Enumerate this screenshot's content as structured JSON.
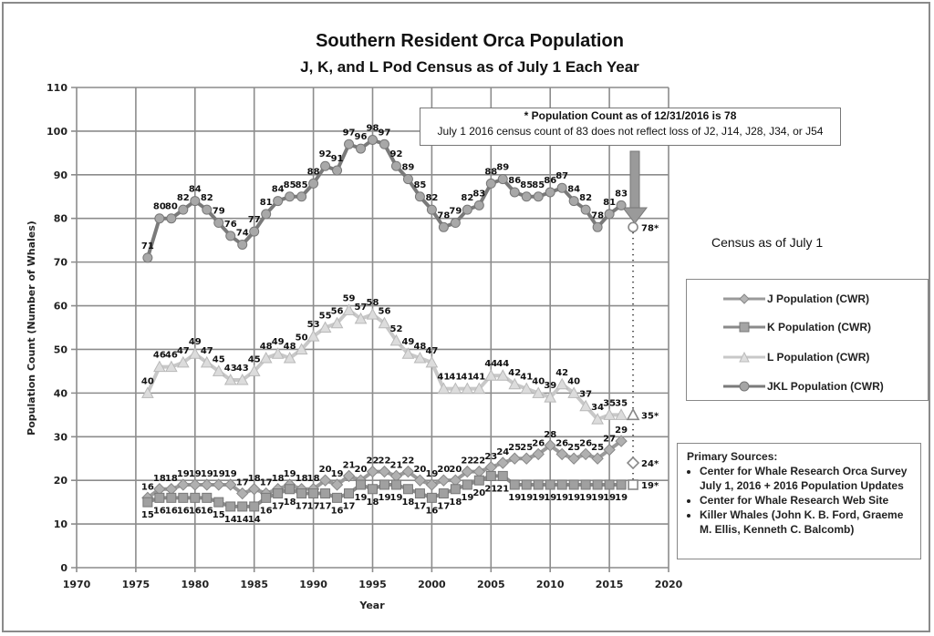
{
  "chart_data": {
    "type": "line",
    "title": "Southern Resident Orca Population",
    "subtitle": "J, K, and L Pod Census as of July 1 Each Year",
    "xlabel": "Year",
    "ylabel": "Population Count (Number of Whales)",
    "xlim": [
      1970,
      2020
    ],
    "ylim": [
      0,
      110
    ],
    "x_ticks": [
      1970,
      1975,
      1980,
      1985,
      1990,
      1995,
      2000,
      2005,
      2010,
      2015,
      2020
    ],
    "y_ticks": [
      0,
      10,
      20,
      30,
      40,
      50,
      60,
      70,
      80,
      90,
      100,
      110
    ],
    "grid": true,
    "legend_position": "right",
    "legend_title": "Census as of July 1",
    "x": [
      1976,
      1977,
      1978,
      1979,
      1980,
      1981,
      1982,
      1983,
      1984,
      1985,
      1986,
      1987,
      1988,
      1989,
      1990,
      1991,
      1992,
      1993,
      1994,
      1995,
      1996,
      1997,
      1998,
      1999,
      2000,
      2001,
      2002,
      2003,
      2004,
      2005,
      2006,
      2007,
      2008,
      2009,
      2010,
      2011,
      2012,
      2013,
      2014,
      2015,
      2016
    ],
    "series": [
      {
        "name": "J Population (CWR)",
        "marker": "diamond",
        "color": "#9a9a9a",
        "values": [
          16,
          18,
          18,
          19,
          19,
          19,
          19,
          19,
          17,
          18,
          17,
          18,
          19,
          18,
          18,
          20,
          19,
          21,
          20,
          22,
          22,
          21,
          22,
          20,
          19,
          20,
          20,
          22,
          22,
          23,
          24,
          25,
          25,
          26,
          28,
          26,
          25,
          26,
          25,
          27,
          29
        ],
        "year_end_2016": {
          "x": 2017,
          "value": 24,
          "label": "24*"
        }
      },
      {
        "name": "K Population (CWR)",
        "marker": "square",
        "color": "#8a8a8a",
        "values": [
          15,
          16,
          16,
          16,
          16,
          16,
          15,
          14,
          14,
          14,
          16,
          17,
          18,
          17,
          17,
          17,
          16,
          17,
          19,
          18,
          19,
          19,
          18,
          17,
          16,
          17,
          18,
          19,
          20,
          21,
          21,
          19,
          19,
          19,
          19,
          19,
          19,
          19,
          19,
          19,
          19
        ],
        "year_end_2016": {
          "x": 2017,
          "value": 19,
          "label": "19*"
        }
      },
      {
        "name": "L Population (CWR)",
        "marker": "triangle",
        "color": "#c8c8c8",
        "values": [
          40,
          46,
          46,
          47,
          49,
          47,
          45,
          43,
          43,
          45,
          48,
          49,
          48,
          50,
          53,
          55,
          56,
          59,
          57,
          58,
          56,
          52,
          49,
          48,
          47,
          41,
          41,
          41,
          41,
          44,
          44,
          42,
          41,
          40,
          39,
          42,
          40,
          37,
          34,
          35,
          35
        ],
        "year_end_2016": {
          "x": 2017,
          "value": 35,
          "label": "35*"
        }
      },
      {
        "name": "JKL Population (CWR)",
        "marker": "circle",
        "color": "#7a7a7a",
        "values": [
          71,
          80,
          80,
          82,
          84,
          82,
          79,
          76,
          74,
          77,
          81,
          84,
          85,
          85,
          88,
          92,
          91,
          97,
          96,
          98,
          97,
          92,
          89,
          85,
          82,
          78,
          79,
          82,
          83,
          88,
          89,
          86,
          85,
          85,
          86,
          87,
          84,
          82,
          78,
          81,
          83
        ],
        "year_end_2016": {
          "x": 2017,
          "value": 78,
          "label": "78*"
        }
      }
    ],
    "annotation": {
      "line1": "* Population Count as of 12/31/2016 is 78",
      "line2": "July 1 2016 census count of 83 does not reflect loss of J2, J14, J28, J34, or J54"
    }
  },
  "sources": {
    "heading": "Primary Sources:",
    "items": [
      "Center for Whale Research Orca Survey July 1, 2016 + 2016 Population Updates",
      "Center for Whale Research Web Site",
      "Killer Whales (John K. B. Ford, Graeme M. Ellis, Kenneth C. Balcomb)"
    ]
  }
}
